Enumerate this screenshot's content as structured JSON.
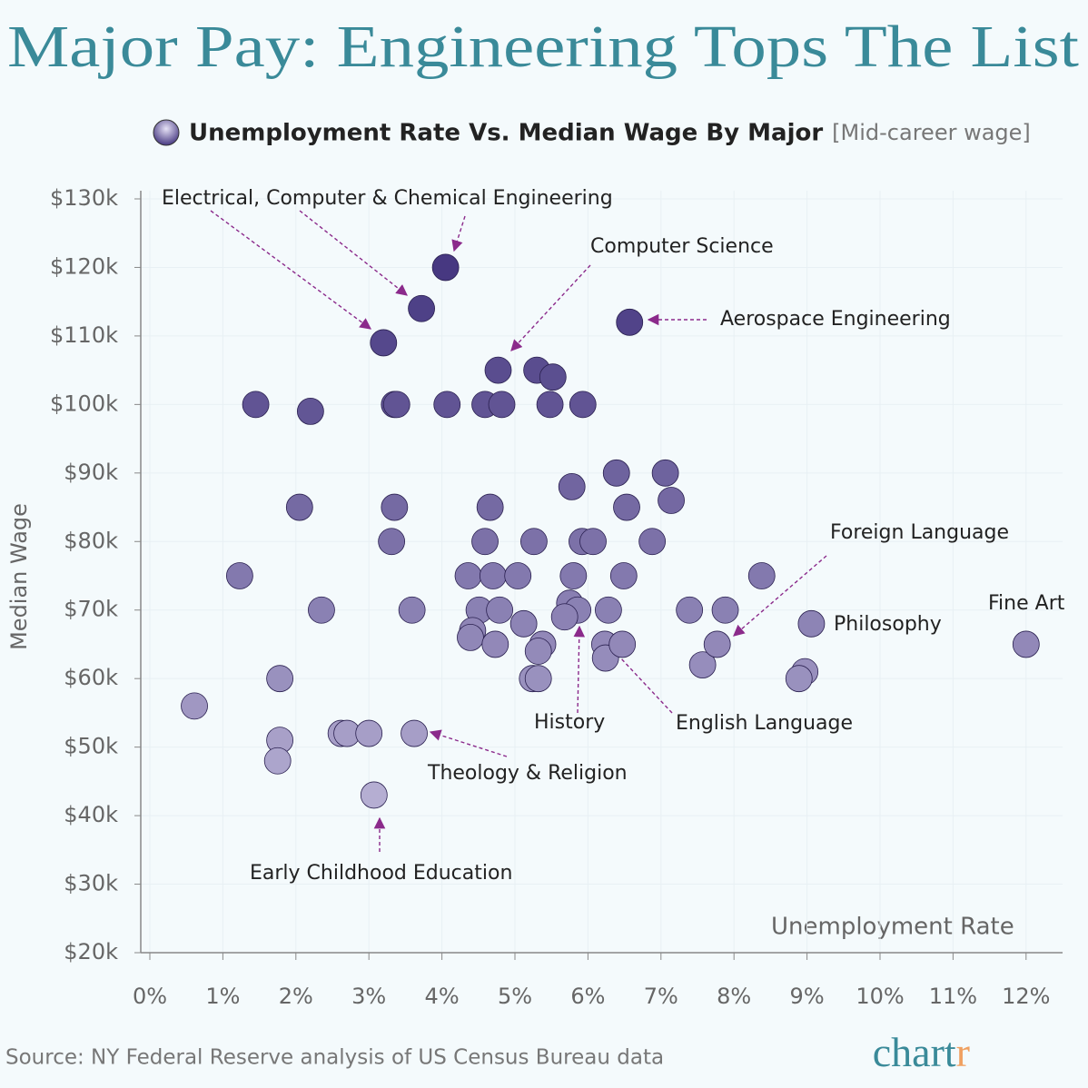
{
  "chart_data": {
    "type": "scatter",
    "title": "Major Pay: Engineering Tops The List",
    "subtitle": "[Mid-career wage]",
    "xlabel": "Unemployment Rate",
    "ylabel": "Median Wage",
    "source": "Source: NY Federal Reserve analysis of US Census Bureau data",
    "logo": [
      "chart",
      "r"
    ],
    "colormap": {
      "low": "#e6e2f6",
      "high": "#3a2b78"
    },
    "xlim": [
      0,
      12.5
    ],
    "ylim": [
      20000,
      130000
    ],
    "xticks": [
      {
        "value": 0,
        "label": "0%"
      },
      {
        "value": 1,
        "label": "1%"
      },
      {
        "value": 2,
        "label": "2%"
      },
      {
        "value": 3,
        "label": "3%"
      },
      {
        "value": 4,
        "label": "4%"
      },
      {
        "value": 5,
        "label": "5%"
      },
      {
        "value": 6,
        "label": "6%"
      },
      {
        "value": 7,
        "label": "7%"
      },
      {
        "value": 8,
        "label": "8%"
      },
      {
        "value": 9,
        "label": "9%"
      },
      {
        "value": 10,
        "label": "10%"
      },
      {
        "value": 11,
        "label": "11%"
      },
      {
        "value": 12,
        "label": "12%"
      }
    ],
    "yticks": [
      {
        "value": 20000,
        "label": "$20k"
      },
      {
        "value": 30000,
        "label": "$30k"
      },
      {
        "value": 40000,
        "label": "$40k"
      },
      {
        "value": 50000,
        "label": "$50k"
      },
      {
        "value": 60000,
        "label": "$60k"
      },
      {
        "value": 70000,
        "label": "$70k"
      },
      {
        "value": 80000,
        "label": "$80k"
      },
      {
        "value": 90000,
        "label": "$90k"
      },
      {
        "value": 100000,
        "label": "$100k"
      },
      {
        "value": 110000,
        "label": "$110k"
      },
      {
        "value": 120000,
        "label": "$120k"
      },
      {
        "value": 130000,
        "label": "$130k"
      }
    ],
    "grid": true,
    "series": [
      {
        "name": "Unemployment Rate Vs. Median Wage By Major",
        "x": [
          12.0,
          0.61,
          1.23,
          1.45,
          2.2,
          2.05,
          2.35,
          1.78,
          1.78,
          1.75,
          2.62,
          2.7,
          3.0,
          3.62,
          3.07,
          3.2,
          3.72,
          4.05,
          6.57,
          3.35,
          3.38,
          4.07,
          4.59,
          4.82,
          5.48,
          5.93,
          4.77,
          5.3,
          5.52,
          3.35,
          3.31,
          3.59,
          4.66,
          4.59,
          4.36,
          4.7,
          5.04,
          5.26,
          5.78,
          6.39,
          7.06,
          7.14,
          6.53,
          5.92,
          6.07,
          6.88,
          5.8,
          6.49,
          8.38,
          5.75,
          5.86,
          5.68,
          6.28,
          7.39,
          7.88,
          4.51,
          4.79,
          4.42,
          4.39,
          4.73,
          5.12,
          5.38,
          5.32,
          5.24,
          5.32,
          6.23,
          6.24,
          6.47,
          7.57,
          7.77,
          9.06,
          8.97,
          8.89
        ],
        "values": [
          65000,
          56000,
          75000,
          100000,
          99000,
          85000,
          70000,
          60000,
          51000,
          48000,
          52000,
          52000,
          52000,
          52000,
          43000,
          109000,
          114000,
          120000,
          112000,
          100000,
          100000,
          100000,
          100000,
          100000,
          100000,
          100000,
          105000,
          105000,
          104000,
          85000,
          80000,
          70000,
          85000,
          80000,
          75000,
          75000,
          75000,
          80000,
          88000,
          90000,
          90000,
          86000,
          85000,
          80000,
          80000,
          80000,
          75000,
          75000,
          75000,
          71000,
          70000,
          69000,
          70000,
          70000,
          70000,
          70000,
          70000,
          67000,
          66000,
          65000,
          68000,
          65000,
          64000,
          60000,
          60000,
          65000,
          63000,
          65000,
          62000,
          65000,
          68000,
          61000,
          60000
        ]
      }
    ],
    "annotations": [
      "Electrical, Computer & Chemical Engineering",
      "Computer Science",
      "Aerospace Engineering",
      "Foreign Language",
      "Philosophy",
      "Fine Art",
      "History",
      "English Language",
      "Theology & Religion",
      "Early Childhood Education"
    ]
  }
}
